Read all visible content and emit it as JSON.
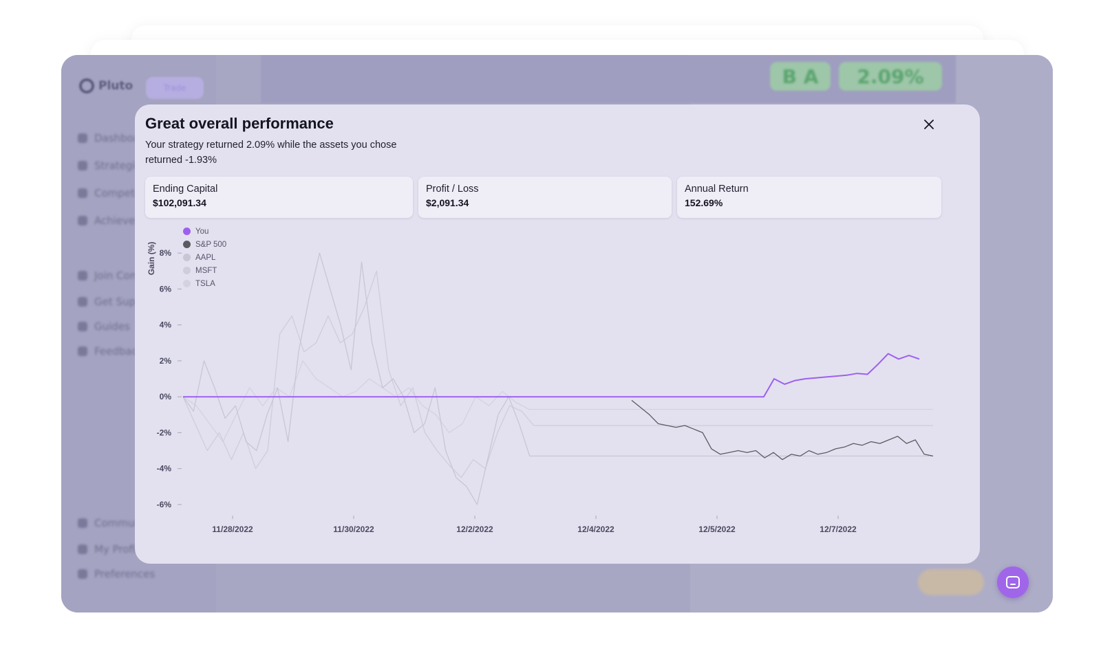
{
  "background_app": {
    "logo_text": "Pluto",
    "trade_button": "Trade",
    "nav_items": [
      "Dashboard",
      "Strategies",
      "Compete",
      "Achievements",
      "Join Community",
      "Get Support",
      "Guides",
      "Feedback",
      "Community",
      "My Profile",
      "Preferences"
    ],
    "grade_badge": "B A",
    "return_badge": "2.09%"
  },
  "modal": {
    "title": "Great overall performance",
    "subtitle": "Your strategy returned 2.09% while the assets you chose returned -1.93%",
    "close_icon": "close-icon",
    "stats": [
      {
        "label": "Ending Capital",
        "value": "$102,091.34"
      },
      {
        "label": "Profit / Loss",
        "value": "$2,091.34"
      },
      {
        "label": "Annual Return",
        "value": "152.69%"
      }
    ]
  },
  "chart_data": {
    "type": "line",
    "ylabel": "Gain (%)",
    "xlabel": "",
    "ylim": [
      -6.5,
      9
    ],
    "y_ticks": [
      "8%",
      "6%",
      "4%",
      "2%",
      "0%",
      "-2%",
      "-4%",
      "-6%"
    ],
    "x_ticks": [
      "11/28/2022",
      "11/30/2022",
      "12/2/2022",
      "12/4/2022",
      "12/5/2022",
      "12/7/2022"
    ],
    "legend": "top-left",
    "series": [
      {
        "name": "You",
        "color": "#9d5ff0",
        "values": [
          0,
          0,
          0,
          0,
          0,
          0,
          0,
          0,
          0,
          0,
          0,
          0,
          0,
          0,
          0,
          0,
          0,
          0,
          0,
          0,
          0,
          0,
          0,
          0,
          0,
          0,
          0,
          0,
          0,
          0,
          0,
          0,
          0,
          0,
          0,
          0,
          0,
          0,
          0,
          0,
          0,
          0,
          0,
          0,
          0,
          0,
          0,
          0,
          0,
          0,
          0,
          0,
          0,
          0,
          0,
          0,
          0,
          1.0,
          0.7,
          0.9,
          1.0,
          1.05,
          1.1,
          1.15,
          1.2,
          1.3,
          1.25,
          1.8,
          2.4,
          2.1,
          2.3,
          2.1
        ]
      },
      {
        "name": "S&P 500",
        "color": "#5a5a60",
        "values": [
          -0.2,
          -0.6,
          -1.0,
          -1.5,
          -1.6,
          -1.7,
          -1.6,
          -1.8,
          -2.0,
          -2.9,
          -3.2,
          -3.1,
          -3.0,
          -3.1,
          -3.0,
          -3.4,
          -3.1,
          -3.5,
          -3.2,
          -3.3,
          -3.0,
          -3.2,
          -3.1,
          -2.9,
          -2.8,
          -2.6,
          -2.7,
          -2.5,
          -2.6,
          -2.4,
          -2.2,
          -2.6,
          -2.4,
          -3.2,
          -3.3
        ]
      },
      {
        "name": "AAPL",
        "color": "#c8c6d6",
        "values": [
          0,
          -0.8,
          2.0,
          0.5,
          -1.2,
          -0.5,
          -2.5,
          -3.0,
          -1.0,
          0.5,
          -2.5,
          2.5,
          5.5,
          8.0,
          6.0,
          4.0,
          1.5,
          7.5,
          3.0,
          0.5,
          1.0,
          0.0,
          -2.0,
          -1.5,
          0.5,
          -3.0,
          -4.5,
          -5.0,
          -6.0,
          -3.5,
          -1.0,
          0.0,
          -1.5,
          -3.3,
          -3.3,
          -3.3,
          -3.3,
          -3.3,
          -3.3
        ]
      },
      {
        "name": "MSFT",
        "color": "#cfcddd",
        "values": [
          0,
          -1.5,
          -3.0,
          -2.0,
          -3.5,
          -2.0,
          -4.0,
          -3.0,
          3.5,
          4.5,
          2.5,
          3.0,
          4.5,
          3.0,
          3.5,
          5.0,
          7.0,
          1.5,
          -0.5,
          0.5,
          -2.0,
          -3.0,
          -3.8,
          -4.5,
          -3.5,
          -4.0,
          -2.0,
          -0.5,
          -0.8,
          -1.6,
          -1.6,
          -1.6,
          -1.6,
          -1.6
        ]
      },
      {
        "name": "TSLA",
        "color": "#d4d2e0",
        "values": [
          0,
          -0.5,
          -1.5,
          -2.5,
          -1.0,
          0.5,
          -0.5,
          0.5,
          0.0,
          2.0,
          1.0,
          0.5,
          0.0,
          0.3,
          1.0,
          0.5,
          0.0,
          0.5,
          -0.5,
          -1.0,
          -2.0,
          -1.5,
          0.0,
          -0.5,
          0.3,
          -0.3,
          -0.7,
          -0.7,
          -0.7,
          -0.7,
          -0.7
        ]
      }
    ]
  },
  "chat_icon": "chat-bubble-icon"
}
